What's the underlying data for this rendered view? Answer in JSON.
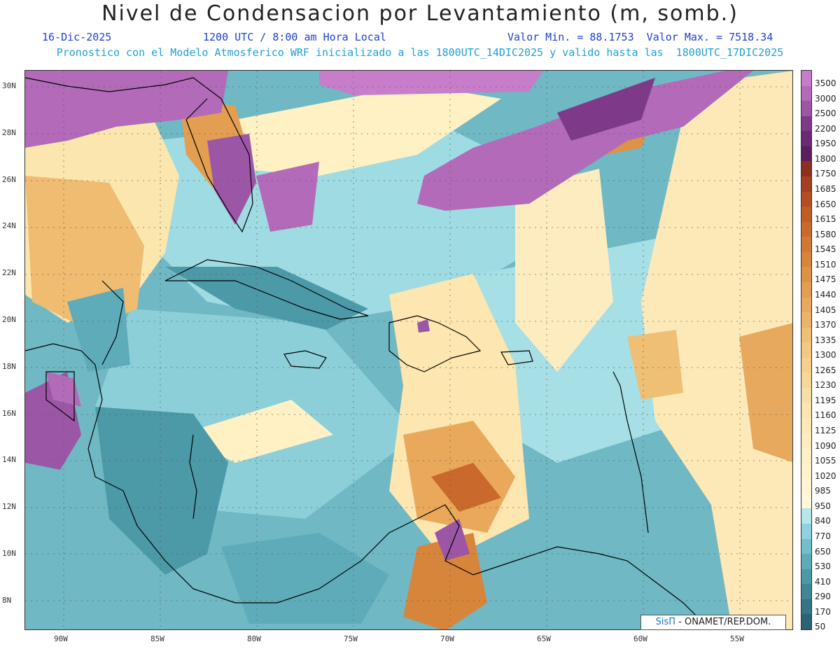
{
  "header": {
    "title": "Nivel de Condensacion por Levantamiento (m, somb.)",
    "date": "16-Dic-2025",
    "time": "1200 UTC / 8:00 am Hora Local",
    "minmax": "Valor Min. = 88.1753  Valor Max. = 7518.34",
    "subtitle": "Pronostico con el Modelo Atmosferico WRF inicializado a las 1800UTC_14DIC2025 y valido hasta las  1800UTC_17DIC2025"
  },
  "map": {
    "lon_labels": [
      "90W",
      "85W",
      "80W",
      "75W",
      "70W",
      "65W",
      "60W",
      "55W"
    ],
    "lat_labels": [
      "30N",
      "28N",
      "26N",
      "24N",
      "22N",
      "20N",
      "18N",
      "16N",
      "14N",
      "12N",
      "10N",
      "8N"
    ]
  },
  "legend": {
    "labels": [
      "3500",
      "3000",
      "2500",
      "2200",
      "1950",
      "1800",
      "1750",
      "1685",
      "1650",
      "1615",
      "1580",
      "1545",
      "1510",
      "1475",
      "1440",
      "1405",
      "1370",
      "1335",
      "1300",
      "1265",
      "1230",
      "1195",
      "1160",
      "1125",
      "1090",
      "1055",
      "1020",
      "985",
      "950",
      "840",
      "770",
      "650",
      "530",
      "410",
      "290",
      "170",
      "50"
    ],
    "colors": [
      "#c77dc9",
      "#b36ab8",
      "#9c56a6",
      "#7e3a88",
      "#6b2a75",
      "#5a1f5c",
      "#8c2f1e",
      "#a3401f",
      "#b24e22",
      "#c05c26",
      "#c96a2c",
      "#d17834",
      "#d8853c",
      "#de9246",
      "#e39e52",
      "#e7a95e",
      "#ebb46a",
      "#efbf76",
      "#f2c882",
      "#f5d08e",
      "#f7d89a",
      "#f9dfa6",
      "#fbe5b0",
      "#fde9b8",
      "#fdecbf",
      "#fef0c6",
      "#fff3cc",
      "#fff5d2",
      "#fff7d8",
      "#b4e6ea",
      "#8dd2dc",
      "#72bfcb",
      "#5eacba",
      "#4c99a8",
      "#3f8696",
      "#347484",
      "#2b6373"
    ]
  },
  "credit": {
    "brand": "SisΠ",
    "text": " - ONAMET/REP.DOM."
  }
}
